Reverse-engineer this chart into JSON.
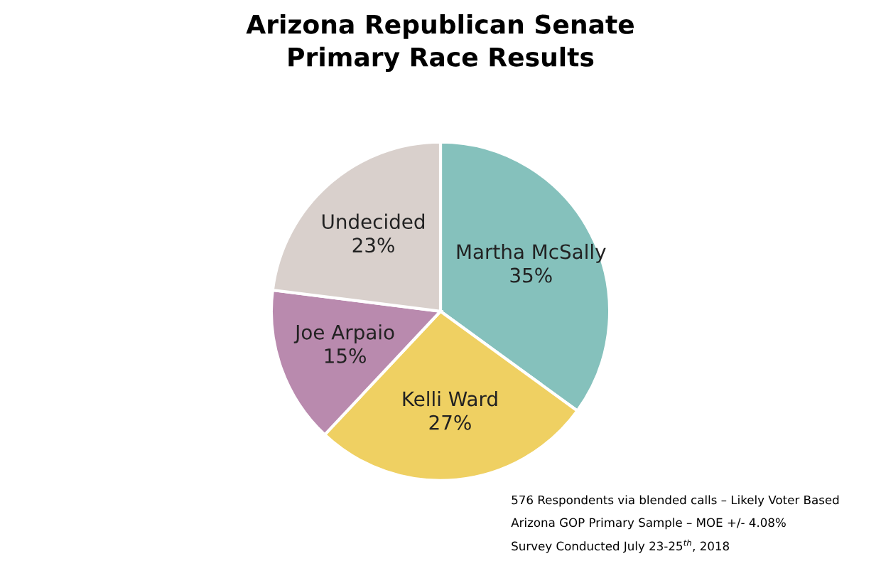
{
  "chart_data": {
    "type": "pie",
    "title": "Arizona Republican Senate\nPrimary Race Results",
    "categories": [
      "Martha McSally",
      "Kelli Ward",
      "Joe Arpaio",
      "Undecided"
    ],
    "values": [
      35,
      27,
      15,
      23
    ],
    "colors": [
      "#85c1bc",
      "#efd062",
      "#b98aae",
      "#d9d0cc"
    ],
    "value_labels": [
      "35%",
      "27%",
      "15%",
      "23%"
    ],
    "annotations": [
      "576 Respondents via blended calls – Likely Voter Based",
      "Arizona GOP Primary Sample – MOE +/- 4.08%",
      "Survey Conducted July 23-25$^{th}$, 2018"
    ]
  }
}
